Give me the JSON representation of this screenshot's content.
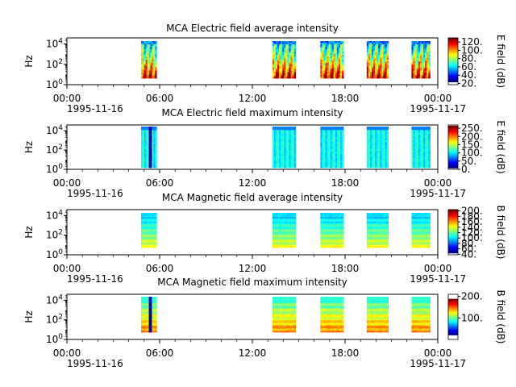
{
  "chart_data": [
    {
      "type": "heatmap",
      "title": "MCA  Electric field average intensity",
      "ylabel": "Hz",
      "y_scale": "log",
      "y_tick_labels": [
        "10^0",
        "10^2",
        "10^4"
      ],
      "x_tick_labels": [
        "00:00",
        "06:00",
        "12:00",
        "18:00",
        "00:00"
      ],
      "x_date_labels": [
        "1995-11-16",
        "1995-11-17"
      ],
      "colorbar": {
        "label": "E field (dB)",
        "range": [
          17,
          130
        ],
        "ticks": [
          20,
          40,
          60,
          80,
          100,
          120
        ]
      },
      "colorbar_tick_labels": [
        "20.",
        "40.",
        "60.",
        "80.",
        "100.",
        "120."
      ],
      "segments_utc_hours": [
        [
          4.8,
          5.8
        ],
        [
          13.3,
          14.8
        ],
        [
          16.4,
          17.9
        ],
        [
          19.4,
          20.8
        ],
        [
          22.3,
          23.5
        ]
      ],
      "pattern": "average-electric"
    },
    {
      "type": "heatmap",
      "title": "MCA  Electric field maximum intensity",
      "ylabel": "Hz",
      "y_scale": "log",
      "y_tick_labels": [
        "10^0",
        "10^2",
        "10^4"
      ],
      "x_tick_labels": [
        "00:00",
        "06:00",
        "12:00",
        "18:00",
        "00:00"
      ],
      "x_date_labels": [
        "1995-11-16",
        "1995-11-17"
      ],
      "colorbar": {
        "label": "E field (dB)",
        "range": [
          0,
          270
        ],
        "ticks": [
          0,
          50,
          100,
          150,
          200,
          250
        ]
      },
      "colorbar_tick_labels": [
        "0.",
        "50.",
        "100.",
        "150.",
        "200.",
        "250."
      ],
      "segments_utc_hours": [
        [
          4.8,
          5.8
        ],
        [
          13.3,
          14.8
        ],
        [
          16.4,
          17.9
        ],
        [
          19.4,
          20.8
        ],
        [
          22.3,
          23.5
        ]
      ],
      "pattern": "maximum-electric"
    },
    {
      "type": "heatmap",
      "title": "MCA  Magnetic field average intensity",
      "ylabel": "Hz",
      "y_scale": "log",
      "y_tick_labels": [
        "10^0",
        "10^2",
        "10^4"
      ],
      "x_tick_labels": [
        "00:00",
        "06:00",
        "12:00",
        "18:00",
        "00:00"
      ],
      "x_date_labels": [
        "1995-11-16",
        "1995-11-17"
      ],
      "colorbar": {
        "label": "B field (dB)",
        "range": [
          38,
          205
        ],
        "ticks": [
          40,
          60,
          80,
          100,
          120,
          140,
          160,
          180,
          200
        ]
      },
      "colorbar_tick_labels": [
        "40.",
        "60.",
        "80.",
        "100.",
        "120.",
        "140.",
        "160.",
        "180.",
        "200."
      ],
      "segments_utc_hours": [
        [
          4.8,
          5.8
        ],
        [
          13.3,
          14.8
        ],
        [
          16.4,
          17.9
        ],
        [
          19.4,
          20.8
        ],
        [
          22.3,
          23.5
        ]
      ],
      "pattern": "average-magnetic"
    },
    {
      "type": "heatmap",
      "title": "MCA  Magnetic field maximum intensity",
      "ylabel": "Hz",
      "y_scale": "log",
      "y_tick_labels": [
        "10^0",
        "10^2",
        "10^4"
      ],
      "x_tick_labels": [
        "00:00",
        "06:00",
        "12:00",
        "18:00",
        "00:00"
      ],
      "x_date_labels": [
        "1995-11-16",
        "1995-11-17"
      ],
      "colorbar": {
        "label": "B field (dB)",
        "range": [
          0,
          210
        ],
        "ticks": [
          100,
          200
        ]
      },
      "colorbar_tick_labels": [
        "100.",
        "200."
      ],
      "segments_utc_hours": [
        [
          4.8,
          5.8
        ],
        [
          13.3,
          14.8
        ],
        [
          16.4,
          17.9
        ],
        [
          19.4,
          20.8
        ],
        [
          22.3,
          23.5
        ]
      ],
      "pattern": "maximum-magnetic"
    }
  ]
}
